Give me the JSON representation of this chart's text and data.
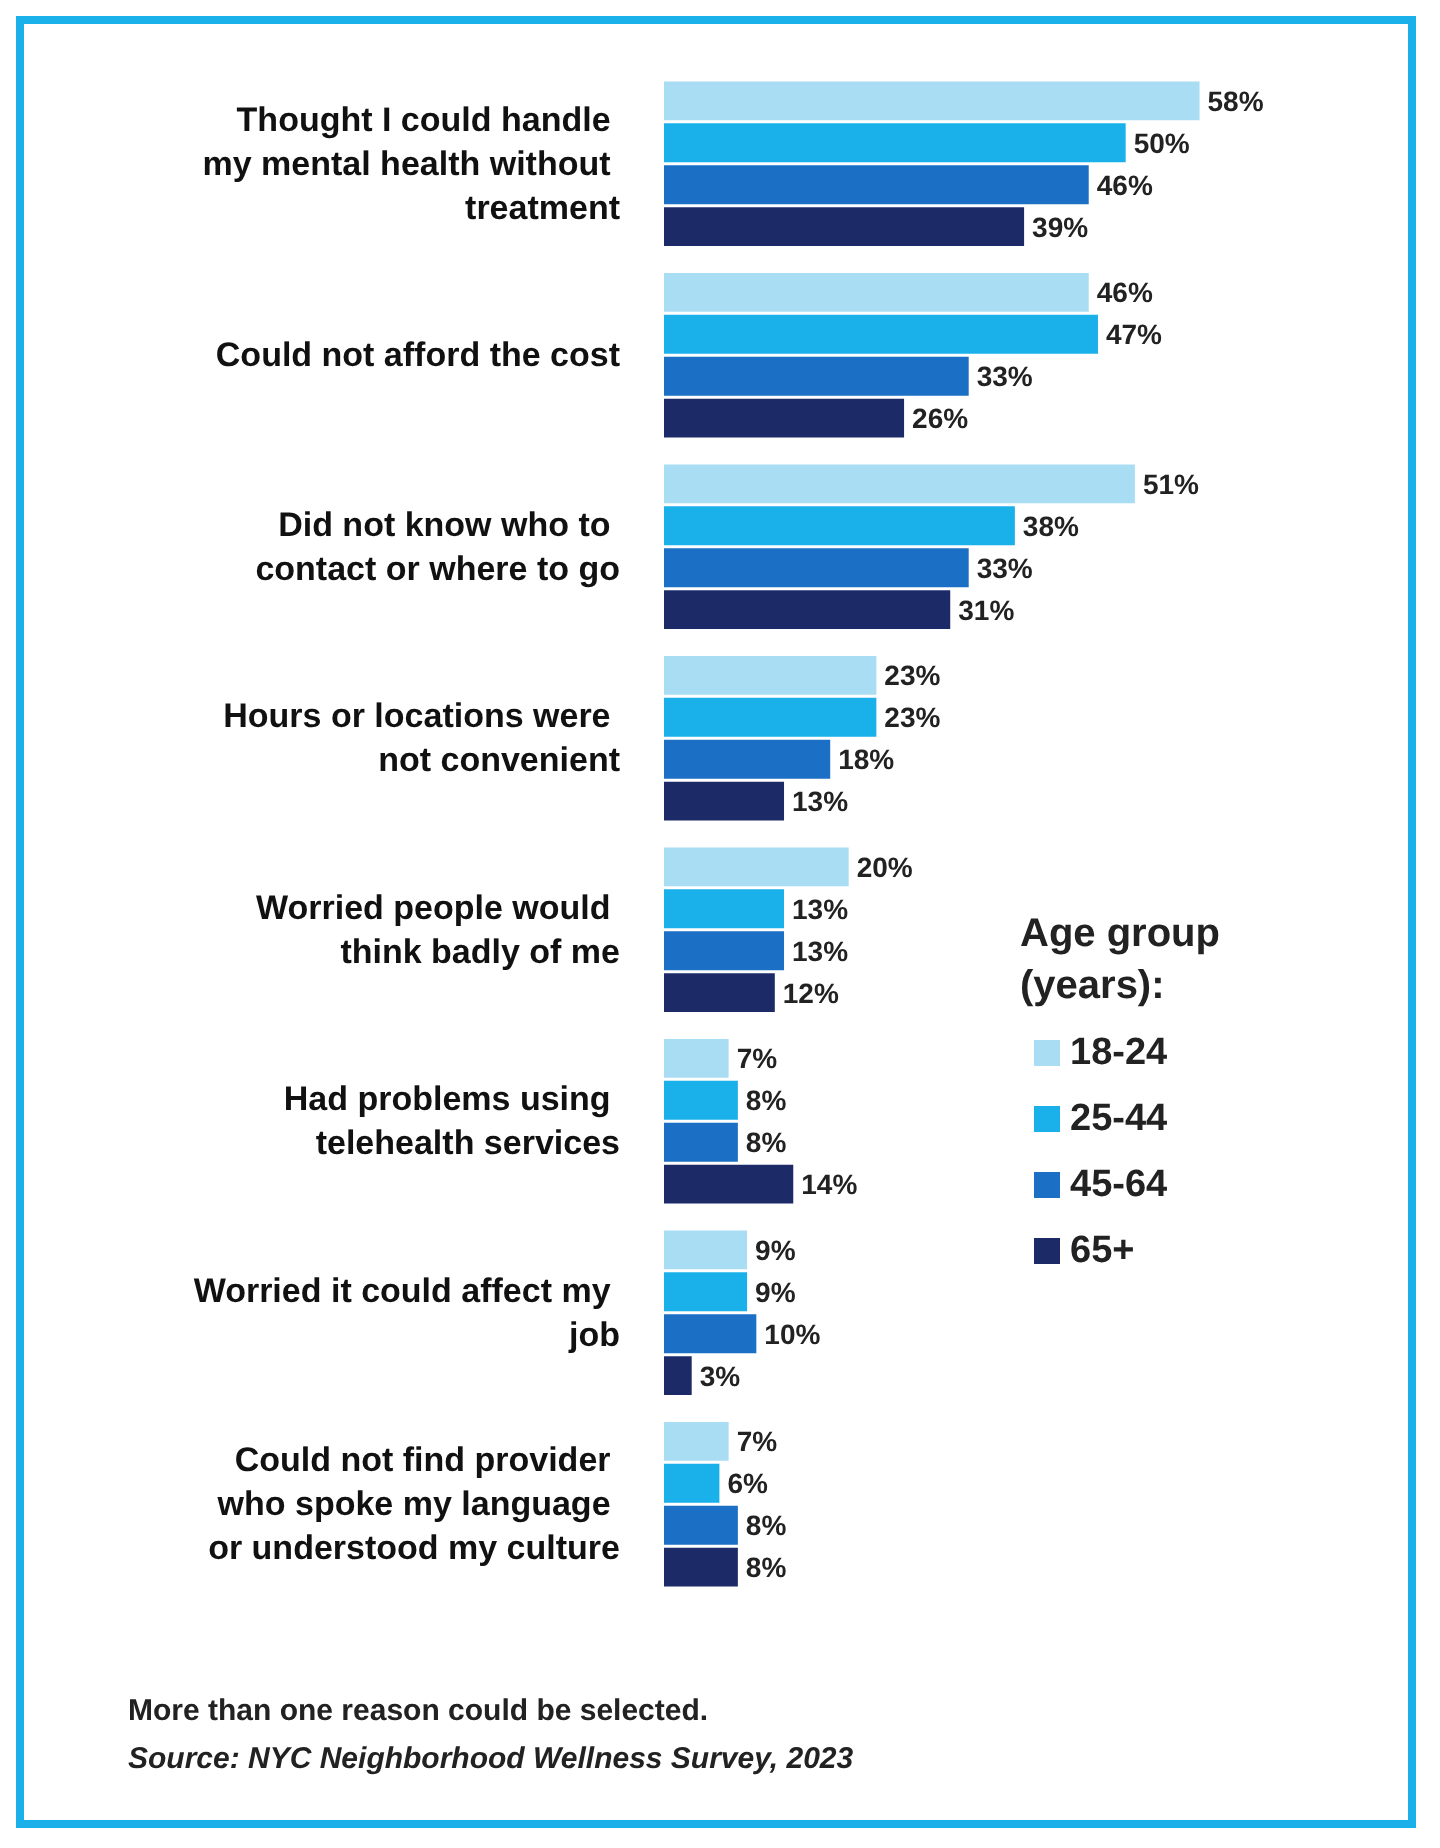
{
  "chart_data": {
    "type": "bar",
    "orientation": "horizontal",
    "legend": "right",
    "legend_title": "Age group (years):",
    "data_labels": true,
    "categories": [
      "Thought I could handle my mental health without treatment",
      "Could not afford the cost",
      "Did not know who to contact or where to go",
      "Hours or locations were not convenient",
      "Worried people would think badly of me",
      "Had problems using telehealth services",
      "Worried it could affect my job",
      "Could not find provider who spoke my language or understood my culture"
    ],
    "series": [
      {
        "name": "18-24",
        "color": "#a8ddf4",
        "values": [
          58,
          46,
          51,
          23,
          20,
          7,
          9,
          7
        ],
        "value_labels": [
          "58%",
          "46%",
          "51%",
          "23%",
          "20%",
          "7%",
          "9%",
          "7%"
        ]
      },
      {
        "name": "25-44",
        "color": "#1ab0ea",
        "values": [
          50,
          47,
          38,
          23,
          13,
          8,
          9,
          6
        ],
        "value_labels": [
          "50%",
          "47%",
          "38%",
          "23%",
          "13%",
          "8%",
          "9%",
          "6%"
        ]
      },
      {
        "name": "45-64",
        "color": "#1b6fc4",
        "values": [
          46,
          33,
          33,
          18,
          13,
          8,
          10,
          8
        ],
        "value_labels": [
          "46%",
          "33%",
          "33%",
          "18%",
          "13%",
          "8%",
          "10%",
          "8%"
        ]
      },
      {
        "name": "65+",
        "color": "#1c2b68",
        "values": [
          39,
          26,
          31,
          13,
          12,
          14,
          3,
          8
        ],
        "value_labels": [
          "39%",
          "26%",
          "31%",
          "13%",
          "12%",
          "14%",
          "3%",
          "8%"
        ]
      }
    ],
    "annotations": [
      "More than one reason could be selected.",
      "Source: NYC Neighborhood Wellness Survey, 2023"
    ]
  }
}
